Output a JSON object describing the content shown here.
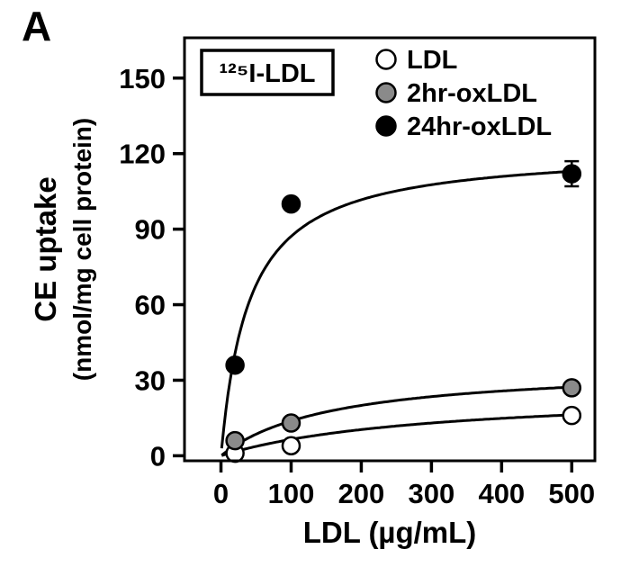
{
  "panel_label": "A",
  "chart_data": {
    "type": "scatter",
    "title": "",
    "annotation_box": "¹²⁵I-LDL",
    "xlabel": "LDL (µg/mL)",
    "ylabel_line1": "CE uptake",
    "ylabel_line2": "(nmol/mg cell protein)",
    "xlim": [
      -52,
      533
    ],
    "ylim": [
      -2,
      166
    ],
    "xticks": [
      0,
      100,
      200,
      300,
      400,
      500
    ],
    "yticks": [
      0,
      30,
      60,
      90,
      120,
      150
    ],
    "grid": false,
    "legend_position": "top-right-inside",
    "axis_color": "#000000",
    "curve_color": "#000000",
    "background_color": "#ffffff",
    "series": [
      {
        "name": "LDL",
        "marker": "circle",
        "marker_fill": "#ffffff",
        "marker_stroke": "#000000",
        "x": [
          20,
          100,
          500
        ],
        "y": [
          1,
          4,
          16
        ],
        "yerr": [
          0,
          0,
          0
        ],
        "fit": {
          "model": "michaelis-menten",
          "vmax": 26,
          "km": 300
        }
      },
      {
        "name": "2hr-oxLDL",
        "marker": "circle",
        "marker_fill": "#8a8a8a",
        "marker_stroke": "#000000",
        "x": [
          20,
          100,
          500
        ],
        "y": [
          6,
          13,
          27
        ],
        "yerr": [
          0,
          0,
          0
        ],
        "fit": {
          "model": "michaelis-menten",
          "vmax": 36,
          "km": 160
        }
      },
      {
        "name": "24hr-oxLDL",
        "marker": "circle",
        "marker_fill": "#000000",
        "marker_stroke": "#000000",
        "x": [
          20,
          100,
          500
        ],
        "y": [
          36,
          100,
          112
        ],
        "yerr": [
          0,
          0,
          5
        ],
        "fit": {
          "model": "michaelis-menten",
          "vmax": 122,
          "km": 40
        }
      }
    ]
  }
}
